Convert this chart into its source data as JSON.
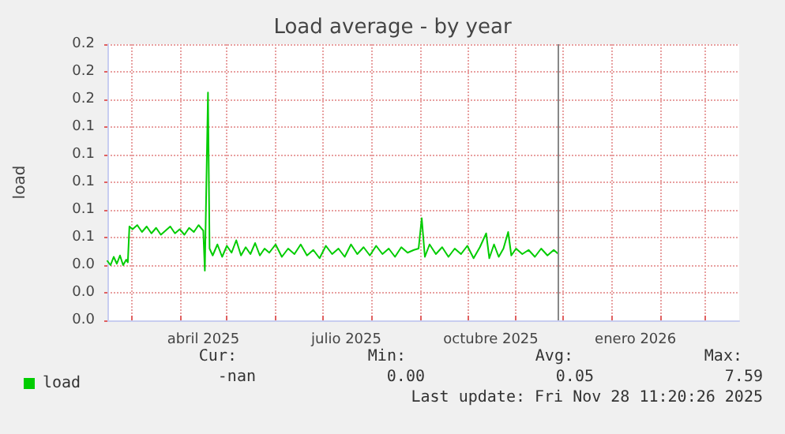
{
  "chart_data": {
    "type": "line",
    "title": "Load average - by year",
    "ylabel": "load",
    "xlim": [
      "2025-02-14",
      "2026-03-23"
    ],
    "ylim": [
      0,
      0.2
    ],
    "xticks": [
      {
        "value": "2025-03-01",
        "label": null
      },
      {
        "value": "2025-04-01",
        "label": null
      },
      {
        "value": "2025-05-01",
        "label": null
      },
      {
        "value": "2025-06-01",
        "label": null
      },
      {
        "value": "2025-07-01",
        "label": null
      },
      {
        "value": "2025-08-01",
        "label": null
      },
      {
        "value": "2025-09-01",
        "label": null
      },
      {
        "value": "2025-10-01",
        "label": null
      },
      {
        "value": "2025-11-01",
        "label": null
      },
      {
        "value": "2025-12-01",
        "label": null
      },
      {
        "value": "2026-01-01",
        "label": null
      },
      {
        "value": "2026-02-01",
        "label": null
      },
      {
        "value": "2026-03-01",
        "label": null
      },
      {
        "value": "2025-04-16",
        "label": "abril 2025"
      },
      {
        "value": "2025-07-16",
        "label": "julio 2025"
      },
      {
        "value": "2025-10-16",
        "label": "octubre 2025"
      },
      {
        "value": "2026-01-16",
        "label": "enero 2026"
      }
    ],
    "yticks": [
      {
        "value": 0,
        "label": "0.0"
      },
      {
        "value": 0.02,
        "label": "0.0"
      },
      {
        "value": 0.04,
        "label": "0.0"
      },
      {
        "value": 0.06,
        "label": "0.1"
      },
      {
        "value": 0.08,
        "label": "0.1"
      },
      {
        "value": 0.1,
        "label": "0.1"
      },
      {
        "value": 0.12,
        "label": "0.1"
      },
      {
        "value": 0.14,
        "label": "0.1"
      },
      {
        "value": 0.16,
        "label": "0.2"
      },
      {
        "value": 0.18,
        "label": "0.2"
      },
      {
        "value": 0.2,
        "label": "0.2"
      }
    ],
    "grid": true,
    "legend": "bottom left",
    "marker": "none",
    "line_style": "solid",
    "ref_lines": [
      {
        "axis": "x",
        "value": "2025-11-28",
        "color": "#888888"
      }
    ],
    "annotations": [
      "Cur:",
      "-nan",
      "Min:",
      "0.00",
      "Avg:",
      "0.05",
      "Max:",
      "7.59",
      "Last update: Fri Nov 28 11:20:26 2025"
    ],
    "series": [
      {
        "name": "load",
        "color": "#00cc00",
        "x": [
          "2025-02-14",
          "2025-02-16",
          "2025-02-18",
          "2025-02-20",
          "2025-02-22",
          "2025-02-24",
          "2025-02-26",
          "2025-02-27",
          "2025-02-28",
          "2025-03-02",
          "2025-03-05",
          "2025-03-08",
          "2025-03-11",
          "2025-03-14",
          "2025-03-17",
          "2025-03-20",
          "2025-03-23",
          "2025-03-26",
          "2025-03-29",
          "2025-04-01",
          "2025-04-04",
          "2025-04-07",
          "2025-04-10",
          "2025-04-13",
          "2025-04-16",
          "2025-04-17",
          "2025-04-19",
          "2025-04-20",
          "2025-04-22",
          "2025-04-25",
          "2025-04-28",
          "2025-05-01",
          "2025-05-04",
          "2025-05-07",
          "2025-05-10",
          "2025-05-13",
          "2025-05-16",
          "2025-05-19",
          "2025-05-22",
          "2025-05-25",
          "2025-05-28",
          "2025-06-01",
          "2025-06-05",
          "2025-06-09",
          "2025-06-13",
          "2025-06-17",
          "2025-06-21",
          "2025-06-25",
          "2025-06-29",
          "2025-07-03",
          "2025-07-07",
          "2025-07-11",
          "2025-07-15",
          "2025-07-19",
          "2025-07-23",
          "2025-07-27",
          "2025-07-31",
          "2025-08-04",
          "2025-08-08",
          "2025-08-12",
          "2025-08-16",
          "2025-08-20",
          "2025-08-24",
          "2025-08-28",
          "2025-08-31",
          "2025-09-02",
          "2025-09-04",
          "2025-09-07",
          "2025-09-11",
          "2025-09-15",
          "2025-09-19",
          "2025-09-23",
          "2025-09-27",
          "2025-10-01",
          "2025-10-05",
          "2025-10-09",
          "2025-10-13",
          "2025-10-15",
          "2025-10-18",
          "2025-10-21",
          "2025-10-24",
          "2025-10-27",
          "2025-10-29",
          "2025-11-01",
          "2025-11-05",
          "2025-11-09",
          "2025-11-13",
          "2025-11-17",
          "2025-11-21",
          "2025-11-25",
          "2025-11-28"
        ],
        "values": [
          0.043,
          0.04,
          0.046,
          0.041,
          0.047,
          0.04,
          0.044,
          0.042,
          0.068,
          0.066,
          0.069,
          0.064,
          0.068,
          0.063,
          0.067,
          0.062,
          0.065,
          0.068,
          0.063,
          0.066,
          0.062,
          0.067,
          0.064,
          0.069,
          0.065,
          0.036,
          0.165,
          0.052,
          0.047,
          0.055,
          0.046,
          0.054,
          0.049,
          0.058,
          0.047,
          0.053,
          0.048,
          0.056,
          0.047,
          0.052,
          0.049,
          0.055,
          0.046,
          0.052,
          0.048,
          0.055,
          0.047,
          0.051,
          0.045,
          0.054,
          0.048,
          0.052,
          0.046,
          0.055,
          0.048,
          0.053,
          0.047,
          0.054,
          0.048,
          0.052,
          0.046,
          0.053,
          0.049,
          0.051,
          0.052,
          0.074,
          0.046,
          0.055,
          0.048,
          0.053,
          0.046,
          0.052,
          0.048,
          0.054,
          0.045,
          0.053,
          0.063,
          0.045,
          0.055,
          0.046,
          0.052,
          0.064,
          0.047,
          0.052,
          0.048,
          0.051,
          0.046,
          0.052,
          0.047,
          0.051,
          0.048
        ]
      }
    ]
  }
}
